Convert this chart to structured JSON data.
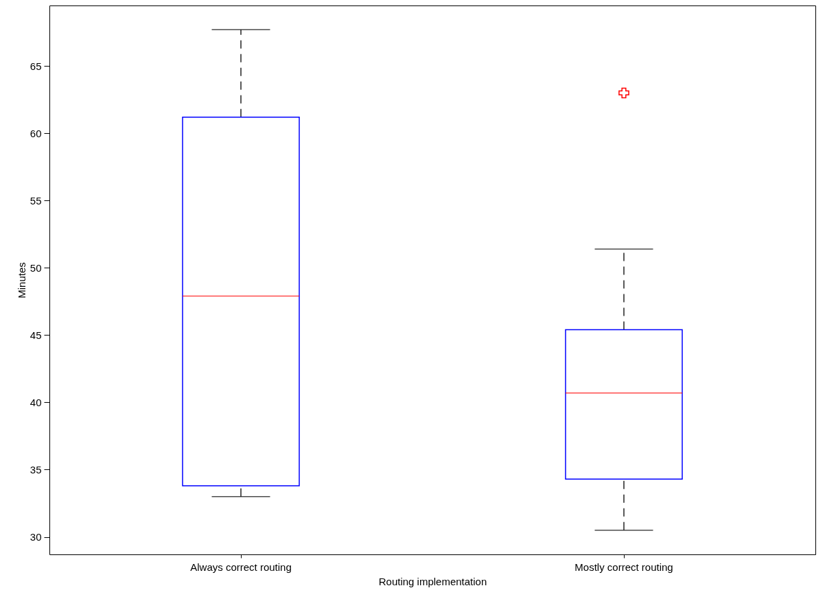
{
  "chart_data": {
    "type": "box",
    "xlabel": "Routing implementation",
    "ylabel": "Minutes",
    "categories": [
      "Always correct routing",
      "Mostly correct routing"
    ],
    "color": "#0000ff",
    "ylim": [
      28.7,
      69.5
    ],
    "yticks": [
      30,
      35,
      40,
      45,
      50,
      55,
      60,
      65
    ],
    "boxes": [
      {
        "low": 33.0,
        "q1": 33.8,
        "median": 47.9,
        "q3": 61.2,
        "high": 67.7
      },
      {
        "low": 30.5,
        "q1": 34.3,
        "median": 40.7,
        "q3": 45.4,
        "high": 51.4,
        "outliers": [
          63.0
        ]
      }
    ]
  }
}
